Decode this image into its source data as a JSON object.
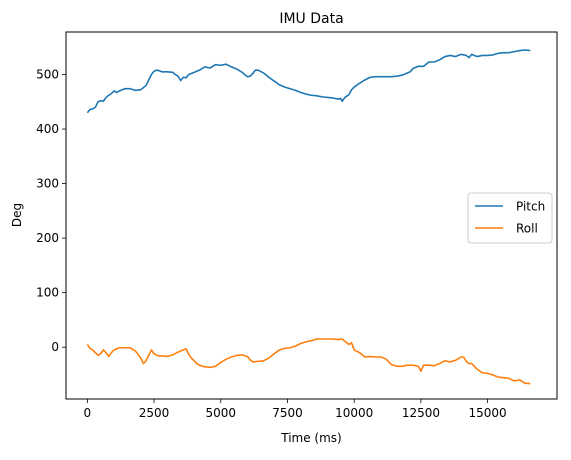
{
  "chart_data": {
    "type": "line",
    "title": "IMU Data",
    "xlabel": "Time (ms)",
    "ylabel": "Deg",
    "xlim": [
      -800,
      17600
    ],
    "ylim": [
      -95,
      578
    ],
    "xticks": [
      0,
      2500,
      5000,
      7500,
      10000,
      12500,
      15000
    ],
    "yticks": [
      0,
      100,
      200,
      300,
      400,
      500
    ],
    "grid": false,
    "legend_position": "center-right",
    "series": [
      {
        "name": "Pitch",
        "color": "#1f77b4",
        "x": [
          0,
          100,
          200,
          300,
          400,
          500,
          600,
          700,
          800,
          900,
          1000,
          1100,
          1200,
          1400,
          1600,
          1800,
          2000,
          2200,
          2300,
          2400,
          2500,
          2600,
          2700,
          2800,
          3000,
          3200,
          3300,
          3400,
          3500,
          3600,
          3700,
          3800,
          4000,
          4200,
          4400,
          4600,
          4800,
          5000,
          5200,
          5400,
          5600,
          5800,
          6000,
          6100,
          6200,
          6300,
          6400,
          6600,
          6800,
          7000,
          7200,
          7400,
          7600,
          7800,
          8000,
          8200,
          8400,
          8600,
          8800,
          9000,
          9200,
          9400,
          9500,
          9550,
          9650,
          9800,
          9900,
          10000,
          10200,
          10400,
          10600,
          10800,
          11000,
          11200,
          11400,
          11600,
          11800,
          12000,
          12100,
          12200,
          12400,
          12600,
          12800,
          13000,
          13200,
          13400,
          13600,
          13800,
          14000,
          14200,
          14300,
          14400,
          14600,
          14800,
          15000,
          15200,
          15400,
          15600,
          15800,
          16000,
          16200,
          16400,
          16600
        ],
        "y": [
          430,
          436,
          437,
          440,
          450,
          452,
          451,
          458,
          462,
          465,
          470,
          467,
          470,
          474,
          474,
          471,
          472,
          480,
          490,
          500,
          506,
          508,
          507,
          505,
          505,
          504,
          500,
          497,
          489,
          495,
          494,
          500,
          504,
          508,
          514,
          512,
          518,
          517,
          519,
          514,
          510,
          504,
          496,
          497,
          502,
          508,
          508,
          503,
          495,
          488,
          481,
          477,
          474,
          471,
          467,
          464,
          462,
          461,
          459,
          458,
          457,
          455,
          456,
          451,
          458,
          463,
          472,
          477,
          484,
          490,
          495,
          496,
          496,
          496,
          496,
          497,
          499,
          503,
          505,
          511,
          515,
          515,
          523,
          523,
          527,
          533,
          535,
          533,
          537,
          535,
          531,
          537,
          533,
          535,
          535,
          536,
          539,
          540,
          540,
          542,
          544,
          545,
          544
        ]
      },
      {
        "name": "Roll",
        "color": "#ff7f0e",
        "x": [
          0,
          100,
          200,
          300,
          400,
          500,
          600,
          700,
          800,
          900,
          1000,
          1100,
          1200,
          1400,
          1600,
          1800,
          1900,
          2000,
          2100,
          2200,
          2300,
          2400,
          2500,
          2600,
          2700,
          2800,
          3000,
          3200,
          3400,
          3600,
          3700,
          3800,
          3900,
          4000,
          4100,
          4200,
          4400,
          4600,
          4800,
          5000,
          5200,
          5400,
          5600,
          5800,
          6000,
          6100,
          6200,
          6400,
          6600,
          6800,
          7000,
          7200,
          7400,
          7600,
          7800,
          8000,
          8200,
          8400,
          8600,
          8800,
          9000,
          9200,
          9400,
          9500,
          9550,
          9650,
          9800,
          9900,
          10000,
          10200,
          10400,
          10600,
          10800,
          11000,
          11200,
          11400,
          11600,
          11800,
          12000,
          12200,
          12400,
          12500,
          12600,
          12800,
          13000,
          13200,
          13400,
          13600,
          13800,
          14000,
          14100,
          14200,
          14300,
          14400,
          14600,
          14800,
          15000,
          15200,
          15400,
          15600,
          15800,
          16000,
          16200,
          16400,
          16600
        ],
        "y": [
          5,
          -2,
          -5,
          -10,
          -15,
          -12,
          -5,
          -10,
          -17,
          -10,
          -5,
          -3,
          -1,
          -1,
          -1,
          -7,
          -13,
          -20,
          -30,
          -25,
          -15,
          -5,
          -12,
          -15,
          -16,
          -16,
          -17,
          -14,
          -9,
          -5,
          -3,
          -13,
          -20,
          -25,
          -30,
          -33,
          -36,
          -37,
          -35,
          -28,
          -22,
          -18,
          -15,
          -14,
          -17,
          -23,
          -27,
          -26,
          -25,
          -20,
          -12,
          -5,
          -2,
          -1,
          2,
          7,
          10,
          12,
          15,
          15,
          15,
          15,
          14,
          15,
          15,
          11,
          5,
          8,
          -5,
          -10,
          -18,
          -17,
          -18,
          -18,
          -22,
          -32,
          -35,
          -35,
          -33,
          -33,
          -35,
          -44,
          -33,
          -33,
          -34,
          -30,
          -25,
          -27,
          -24,
          -18,
          -18,
          -26,
          -30,
          -30,
          -40,
          -47,
          -48,
          -51,
          -55,
          -56,
          -57,
          -62,
          -60,
          -66,
          -67
        ]
      }
    ]
  }
}
